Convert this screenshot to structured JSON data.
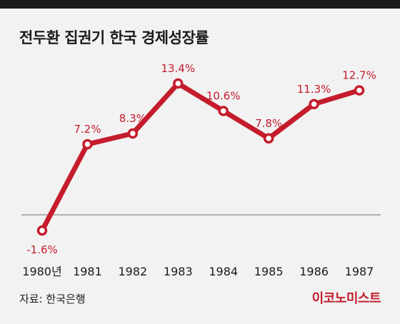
{
  "title": "전두환 집권기 한국 경제성장률",
  "source": "자료: 한국은행",
  "brand": "이코노미스트",
  "colors": {
    "series": "#c41c2c",
    "text": "#1a1a1a",
    "background": "#f2f2f2",
    "zero_line": "#888888"
  },
  "chart_data": {
    "type": "line",
    "title": "전두환 집권기 한국 경제성장률",
    "x": [
      "1980년",
      "1981",
      "1982",
      "1983",
      "1984",
      "1985",
      "1986",
      "1987"
    ],
    "series": [
      {
        "values": [
          -1.6,
          7.2,
          8.3,
          13.4,
          10.6,
          7.8,
          11.3,
          12.7
        ],
        "labels": [
          "-1.6%",
          "7.2%",
          "8.3%",
          "13.4%",
          "10.6%",
          "7.8%",
          "11.3%",
          "12.7%"
        ]
      }
    ],
    "ylim": [
      -2,
      14
    ],
    "grid": false,
    "reference_line": 0
  }
}
